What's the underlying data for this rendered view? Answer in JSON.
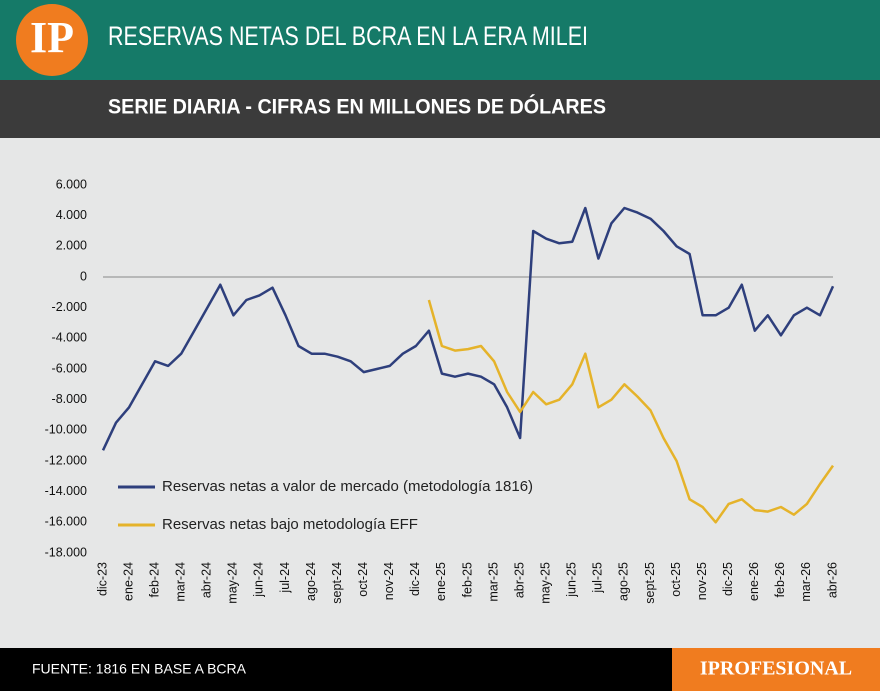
{
  "header": {
    "logo": "IP",
    "title": "RESERVAS NETAS DEL BCRA EN LA ERA MILEI",
    "subtitle": "SERIE DIARIA - CIFRAS EN MILLONES DE DÓLARES"
  },
  "footer": {
    "source": "FUENTE: 1816 EN BASE A BCRA",
    "brand": "IPROFESIONAL"
  },
  "chart_data": {
    "type": "line",
    "categories": [
      "dic-23",
      null,
      "ene-24",
      null,
      "feb-24",
      null,
      "mar-24",
      null,
      "abr-24",
      null,
      "may-24",
      null,
      "jun-24",
      null,
      "jul-24",
      null,
      "ago-24",
      null,
      "sept-24",
      null,
      "oct-24",
      null,
      "nov-24",
      null,
      "dic-24",
      null,
      "ene-25",
      null,
      "feb-25",
      null,
      "mar-25",
      null,
      "abr-25",
      null,
      "may-25",
      null,
      "jun-25",
      null,
      "jul-25",
      null,
      "ago-25",
      null,
      "sept-25",
      null,
      "oct-25",
      null,
      "nov-25",
      null,
      "dic-25",
      null,
      "ene-26",
      null,
      "feb-26",
      null,
      "mar-26",
      null,
      "abr-26"
    ],
    "series": [
      {
        "name": "Reservas netas a valor de mercado (metodología 1816)",
        "color": "#2e3f7c",
        "values": [
          -11300,
          -9500,
          -8500,
          -7000,
          -5500,
          -5800,
          -5000,
          -3500,
          -2000,
          -500,
          -2500,
          -1500,
          -1200,
          -700,
          -2500,
          -4500,
          -5000,
          -5000,
          -5200,
          -5500,
          -6200,
          -6000,
          -5800,
          -5000,
          -4500,
          -3500,
          -6300,
          -6500,
          -6300,
          -6500,
          -7000,
          -8500,
          -10500,
          3000,
          2500,
          2200,
          2300,
          4500,
          1200,
          3500,
          4500,
          4200,
          3800,
          3000,
          2000,
          1500,
          -2500,
          -2500,
          -2000,
          -500,
          -3500,
          -2500,
          -3800,
          -2500,
          -2000,
          -2500,
          -600
        ]
      },
      {
        "name": "Reservas netas bajo metodología EFF",
        "color": "#e5b32a",
        "values": [
          null,
          null,
          null,
          null,
          null,
          null,
          null,
          null,
          null,
          null,
          null,
          null,
          null,
          null,
          null,
          null,
          null,
          null,
          null,
          null,
          null,
          null,
          null,
          null,
          null,
          -1500,
          -4500,
          -4800,
          -4700,
          -4500,
          -5500,
          -7500,
          -8800,
          -7500,
          -8300,
          -8000,
          -7000,
          -5000,
          -8500,
          -8000,
          -7000,
          -7800,
          -8700,
          -10500,
          -12000,
          -14500,
          -15000,
          -16000,
          -14800,
          -14500,
          -15200,
          -15300,
          -15000,
          -15500,
          -14800,
          -13500,
          -12300
        ]
      }
    ],
    "ylim": [
      -18000,
      6000
    ],
    "yticks": [
      {
        "value": -18000,
        "label": "-18.000"
      },
      {
        "value": -16000,
        "label": "-16.000"
      },
      {
        "value": -14000,
        "label": "-14.000"
      },
      {
        "value": -12000,
        "label": "-12.000"
      },
      {
        "value": -10000,
        "label": "-10.000"
      },
      {
        "value": -8000,
        "label": "-8.000"
      },
      {
        "value": -6000,
        "label": "-6.000"
      },
      {
        "value": -4000,
        "label": "-4.000"
      },
      {
        "value": -2000,
        "label": "-2.000"
      },
      0,
      {
        "value": 2000,
        "label": "2.000"
      },
      {
        "value": 4000,
        "label": "4.000"
      },
      {
        "value": 6000,
        "label": "6.000"
      }
    ],
    "grid": false,
    "legend": "lower left"
  }
}
